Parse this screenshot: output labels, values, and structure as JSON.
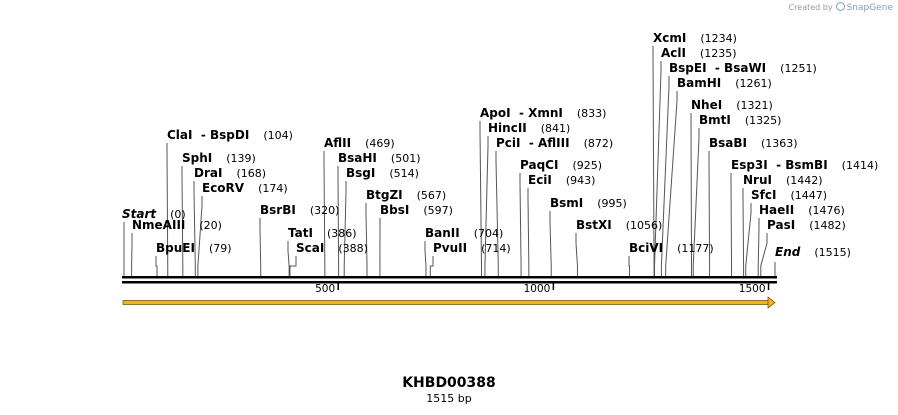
{
  "credit": {
    "prefix": "Created by",
    "brand": "SnapGene"
  },
  "sequence": {
    "name": "KHBD00388",
    "length_label": "1515 bp",
    "length": 1515
  },
  "start_label": "Start",
  "start_pos": "(0)",
  "end_label": "End",
  "end_pos": "(1515)",
  "ticks": [
    {
      "label": "500",
      "value": 500
    },
    {
      "label": "1000",
      "value": 1000
    },
    {
      "label": "1500",
      "value": 1500
    }
  ],
  "feature": {
    "color": "#f0b323",
    "direction": "forward"
  },
  "sites": [
    {
      "name": "NmeAIII",
      "pos": "(20)",
      "site": 20
    },
    {
      "name": "BpuEI",
      "pos": "(79)",
      "site": 79
    },
    {
      "name": "ClaI  - BspDI",
      "pos": "(104)",
      "site": 104
    },
    {
      "name": "SphI",
      "pos": "(139)",
      "site": 139
    },
    {
      "name": "DraI",
      "pos": "(168)",
      "site": 168
    },
    {
      "name": "EcoRV",
      "pos": "(174)",
      "site": 174
    },
    {
      "name": "BsrBI",
      "pos": "(320)",
      "site": 320
    },
    {
      "name": "TatI",
      "pos": "(386)",
      "site": 386
    },
    {
      "name": "ScaI",
      "pos": "(388)",
      "site": 388
    },
    {
      "name": "AflII",
      "pos": "(469)",
      "site": 469
    },
    {
      "name": "BsaHI",
      "pos": "(501)",
      "site": 501
    },
    {
      "name": "BsgI",
      "pos": "(514)",
      "site": 514
    },
    {
      "name": "BtgZI",
      "pos": "(567)",
      "site": 567
    },
    {
      "name": "BbsI",
      "pos": "(597)",
      "site": 597
    },
    {
      "name": "BanII",
      "pos": "(704)",
      "site": 704
    },
    {
      "name": "PvuII",
      "pos": "(714)",
      "site": 714
    },
    {
      "name": "ApoI  - XmnI",
      "pos": "(833)",
      "site": 833
    },
    {
      "name": "HincII",
      "pos": "(841)",
      "site": 841
    },
    {
      "name": "PciI  - AflIII",
      "pos": "(872)",
      "site": 872
    },
    {
      "name": "PaqCI",
      "pos": "(925)",
      "site": 925
    },
    {
      "name": "EciI",
      "pos": "(943)",
      "site": 943
    },
    {
      "name": "BsmI",
      "pos": "(995)",
      "site": 995
    },
    {
      "name": "BstXI",
      "pos": "(1056)",
      "site": 1056
    },
    {
      "name": "BciVI",
      "pos": "(1177)",
      "site": 1177
    },
    {
      "name": "XcmI",
      "pos": "(1234)",
      "site": 1234
    },
    {
      "name": "AclI",
      "pos": "(1235)",
      "site": 1235
    },
    {
      "name": "BspEI  - BsaWI",
      "pos": "(1251)",
      "site": 1251
    },
    {
      "name": "BamHI",
      "pos": "(1261)",
      "site": 1261
    },
    {
      "name": "NheI",
      "pos": "(1321)",
      "site": 1321
    },
    {
      "name": "BmtI",
      "pos": "(1325)",
      "site": 1325
    },
    {
      "name": "BsaBI",
      "pos": "(1363)",
      "site": 1363
    },
    {
      "name": "Esp3I  - BsmBI",
      "pos": "(1414)",
      "site": 1414
    },
    {
      "name": "NruI",
      "pos": "(1442)",
      "site": 1442
    },
    {
      "name": "SfcI",
      "pos": "(1447)",
      "site": 1447
    },
    {
      "name": "HaeII",
      "pos": "(1476)",
      "site": 1476
    },
    {
      "name": "PasI",
      "pos": "(1482)",
      "site": 1482
    }
  ]
}
